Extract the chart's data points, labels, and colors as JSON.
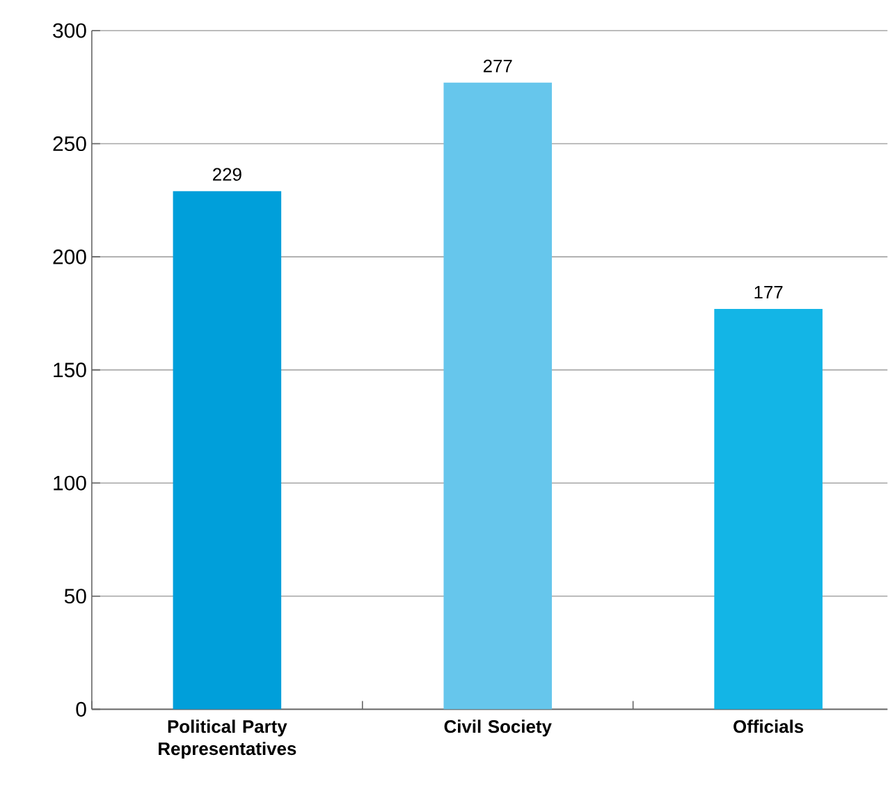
{
  "chart_data": {
    "type": "bar",
    "categories": [
      "Political Party Representatives",
      "Civil Society",
      "Officials"
    ],
    "values": [
      229,
      277,
      177
    ],
    "colors": [
      "#009fda",
      "#66c6ec",
      "#13b5e6"
    ],
    "ylim": [
      0,
      300
    ],
    "yticks": [
      0,
      50,
      100,
      150,
      200,
      250,
      300
    ],
    "grid": "y",
    "data_labels": true
  }
}
